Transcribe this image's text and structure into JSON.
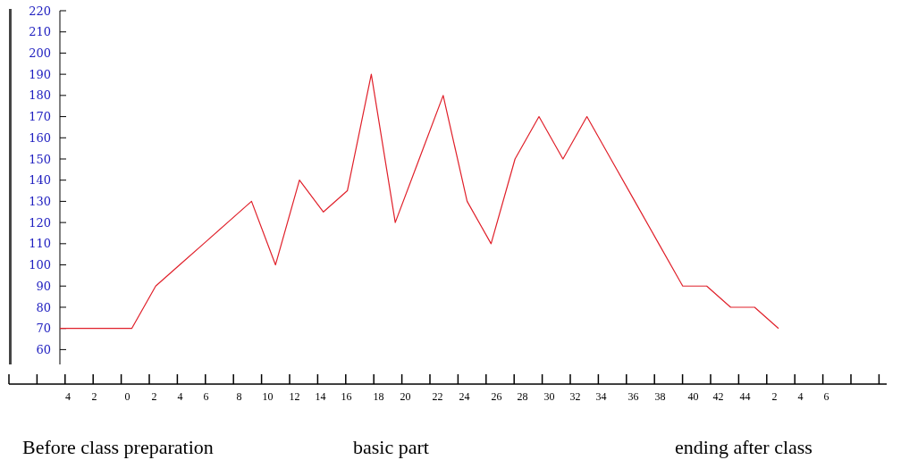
{
  "chart_data": {
    "type": "line",
    "categories": [
      null,
      null,
      null,
      null,
      null,
      null,
      null,
      null,
      null,
      null,
      null,
      null,
      null,
      null,
      null,
      null,
      null,
      null,
      null,
      null,
      null,
      null,
      null,
      null,
      null,
      null,
      null,
      null,
      null,
      null,
      null
    ],
    "series": [
      {
        "color": "#e0202a",
        "values": [
          70,
          70,
          70,
          70,
          90,
          100,
          110,
          120,
          130,
          100,
          140,
          125,
          135,
          190,
          120,
          150,
          180,
          130,
          110,
          150,
          170,
          150,
          170,
          150,
          130,
          110,
          90,
          90,
          80,
          80,
          70
        ]
      }
    ],
    "ylim": [
      53,
      220
    ],
    "yticks": [
      60,
      70,
      80,
      90,
      100,
      110,
      120,
      130,
      140,
      150,
      160,
      170,
      180,
      190,
      200,
      210,
      220
    ],
    "grid": false,
    "marker": "none",
    "line_style": "solid",
    "annotations": [
      "4 2 0 2 4 6 8 10 12 14 16 18 20 22 24 26 28 30 32 34 36 38 40 42 44 2 4 6",
      "Before class preparation",
      "basic part",
      "ending after class"
    ]
  }
}
